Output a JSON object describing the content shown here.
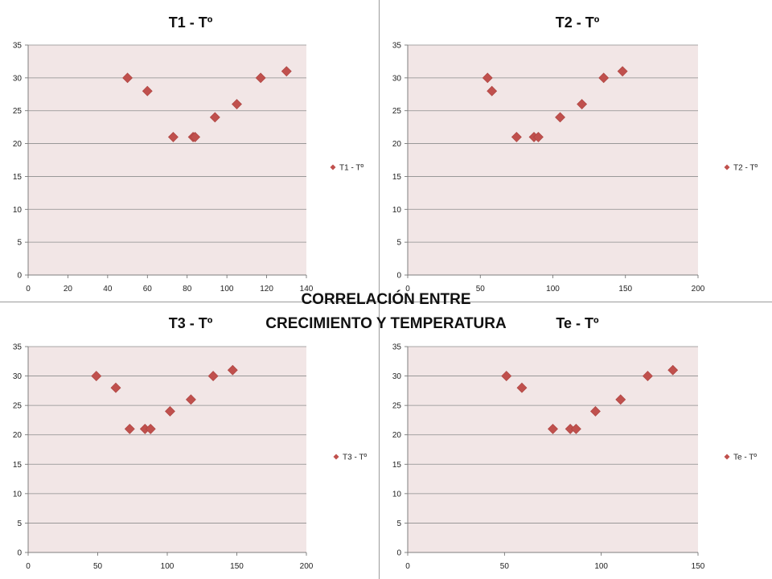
{
  "overlay": {
    "line1": "CORRELACIÓN ENTRE",
    "line2": "CRECIMIENTO Y TEMPERATURA"
  },
  "colors": {
    "marker": "#c0504d",
    "plot_bg": "#f2e6e6",
    "grid": "#8c8c8c"
  },
  "chart_data": [
    {
      "type": "scatter",
      "title": "T1 - Tº",
      "legend": "right",
      "grid": true,
      "xlim": [
        0,
        140
      ],
      "xticks": [
        0,
        20,
        40,
        60,
        80,
        100,
        120,
        140
      ],
      "ylim": [
        0,
        35
      ],
      "yticks": [
        0,
        5,
        10,
        15,
        20,
        25,
        30,
        35
      ],
      "series": [
        {
          "name": "T1 - Tº",
          "x": [
            50,
            60,
            73,
            83,
            84,
            94,
            105,
            117,
            130
          ],
          "y": [
            30,
            28,
            21,
            21,
            21,
            24,
            26,
            30,
            31
          ]
        }
      ]
    },
    {
      "type": "scatter",
      "title": "T2 - Tº",
      "legend": "right",
      "grid": true,
      "xlim": [
        0,
        200
      ],
      "xticks": [
        0,
        50,
        100,
        150,
        200
      ],
      "ylim": [
        0,
        35
      ],
      "yticks": [
        0,
        5,
        10,
        15,
        20,
        25,
        30,
        35
      ],
      "series": [
        {
          "name": "T2 - Tº",
          "x": [
            55,
            58,
            75,
            87,
            90,
            105,
            120,
            135,
            148
          ],
          "y": [
            30,
            28,
            21,
            21,
            21,
            24,
            26,
            30,
            31
          ]
        }
      ]
    },
    {
      "type": "scatter",
      "title": "T3 - Tº",
      "legend": "right",
      "grid": true,
      "xlim": [
        0,
        200
      ],
      "xticks": [
        0,
        50,
        100,
        150,
        200
      ],
      "ylim": [
        0,
        35
      ],
      "yticks": [
        0,
        5,
        10,
        15,
        20,
        25,
        30,
        35
      ],
      "series": [
        {
          "name": "T3 - Tº",
          "x": [
            49,
            63,
            73,
            84,
            88,
            102,
            117,
            133,
            147
          ],
          "y": [
            30,
            28,
            21,
            21,
            21,
            24,
            26,
            30,
            31
          ]
        }
      ]
    },
    {
      "type": "scatter",
      "title": "Te - Tº",
      "legend": "right",
      "grid": true,
      "xlim": [
        0,
        150
      ],
      "xticks": [
        0,
        50,
        100,
        150
      ],
      "ylim": [
        0,
        35
      ],
      "yticks": [
        0,
        5,
        10,
        15,
        20,
        25,
        30,
        35
      ],
      "series": [
        {
          "name": "Te - Tº",
          "x": [
            51,
            59,
            75,
            84,
            87,
            97,
            110,
            124,
            137
          ],
          "y": [
            30,
            28,
            21,
            21,
            21,
            24,
            26,
            30,
            31
          ]
        }
      ]
    }
  ]
}
